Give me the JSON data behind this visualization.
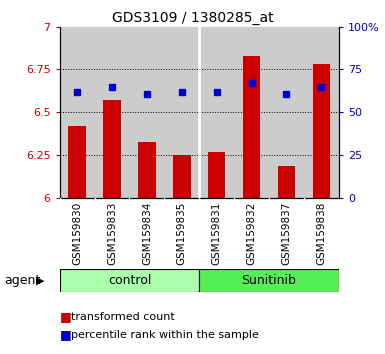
{
  "title": "GDS3109 / 1380285_at",
  "categories": [
    "GSM159830",
    "GSM159833",
    "GSM159834",
    "GSM159835",
    "GSM159831",
    "GSM159832",
    "GSM159837",
    "GSM159838"
  ],
  "bar_values": [
    6.42,
    6.57,
    6.33,
    6.25,
    6.27,
    6.83,
    6.19,
    6.78
  ],
  "bar_base": 6.0,
  "dot_values_pct": [
    62,
    65,
    61,
    62,
    62,
    67,
    61,
    65
  ],
  "bar_color": "#cc0000",
  "dot_color": "#0000cc",
  "ylim_left": [
    6.0,
    7.0
  ],
  "ylim_right": [
    0,
    100
  ],
  "yticks_left": [
    6.0,
    6.25,
    6.5,
    6.75,
    7.0
  ],
  "ytick_labels_left": [
    "6",
    "6.25",
    "6.5",
    "6.75",
    "7"
  ],
  "yticks_right": [
    0,
    25,
    50,
    75,
    100
  ],
  "ytick_labels_right": [
    "0",
    "25",
    "50",
    "75",
    "100%"
  ],
  "grid_yticks": [
    6.25,
    6.5,
    6.75
  ],
  "control_label": "control",
  "sunitinib_label": "Sunitinib",
  "agent_label": "agent",
  "legend_bar_label": "transformed count",
  "legend_dot_label": "percentile rank within the sample",
  "control_color": "#aaffaa",
  "sunitinib_color": "#55ee55",
  "bar_axis_color": "#cc0000",
  "dot_axis_color": "#0000cc",
  "col_bg_color": "#cccccc",
  "plot_bg": "#ffffff",
  "bar_width": 0.5
}
